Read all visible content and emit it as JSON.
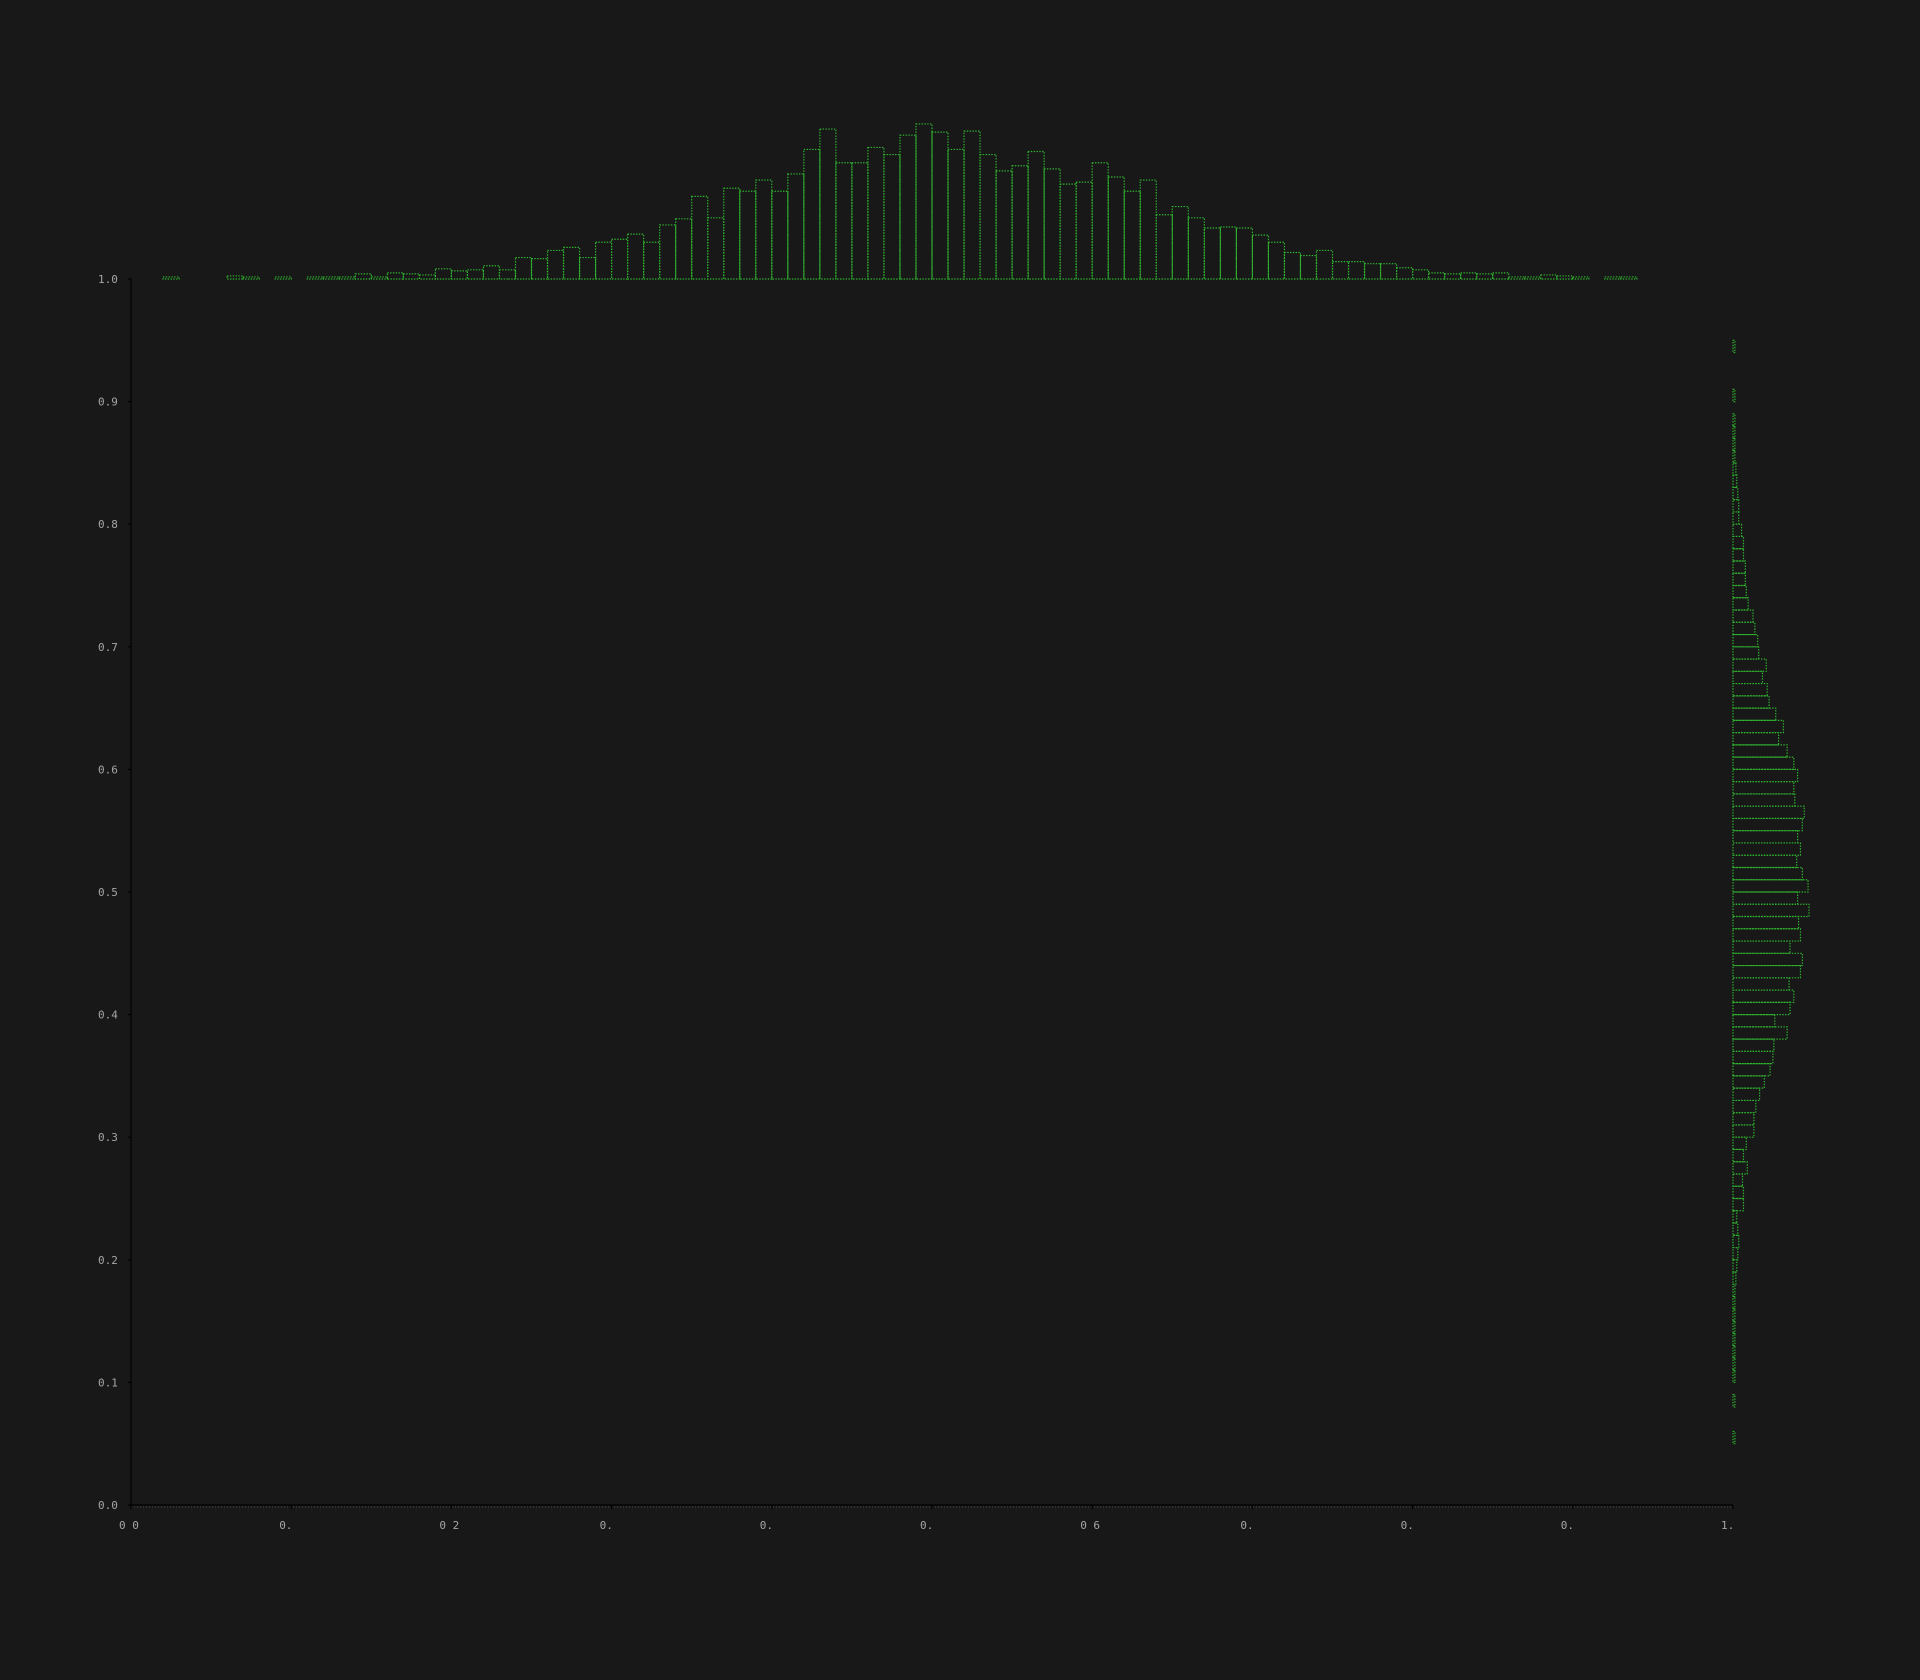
{
  "chart_data": {
    "type": "scatter-with-marginal-histograms",
    "xlim": [
      0.0,
      1.0
    ],
    "ylim": [
      0.0,
      1.0
    ],
    "colors": {
      "background": "#181818",
      "bars": "#2fb52f",
      "ticks": "#a6a6a6",
      "axis": "#000000"
    },
    "x_ticks": [
      {
        "value": 0.0,
        "label": "0 0"
      },
      {
        "value": 0.1,
        "label": "0."
      },
      {
        "value": 0.2,
        "label": "0 2"
      },
      {
        "value": 0.3,
        "label": "0."
      },
      {
        "value": 0.4,
        "label": "0."
      },
      {
        "value": 0.5,
        "label": "0."
      },
      {
        "value": 0.6,
        "label": "0 6"
      },
      {
        "value": 0.7,
        "label": "0."
      },
      {
        "value": 0.8,
        "label": "0."
      },
      {
        "value": 0.9,
        "label": "0."
      },
      {
        "value": 1.0,
        "label": "1."
      }
    ],
    "y_ticks": [
      {
        "value": 0.0,
        "label": "0.0"
      },
      {
        "value": 0.1,
        "label": "0.1"
      },
      {
        "value": 0.2,
        "label": "0.2"
      },
      {
        "value": 0.3,
        "label": "0.3"
      },
      {
        "value": 0.4,
        "label": "0.4"
      },
      {
        "value": 0.5,
        "label": "0.5"
      },
      {
        "value": 0.6,
        "label": "0.6"
      },
      {
        "value": 0.7,
        "label": "0.7"
      },
      {
        "value": 0.8,
        "label": "0.8"
      },
      {
        "value": 0.9,
        "label": "0.9"
      },
      {
        "value": 1.0,
        "label": "1.0"
      }
    ],
    "top_histogram": {
      "bin_width": 0.01,
      "bins": [
        [
          0.02,
          0.2
        ],
        [
          0.06,
          0.3
        ],
        [
          0.07,
          0.2
        ],
        [
          0.09,
          0.2
        ],
        [
          0.11,
          0.2
        ],
        [
          0.12,
          0.2
        ],
        [
          0.13,
          0.2
        ],
        [
          0.14,
          0.5
        ],
        [
          0.15,
          0.2
        ],
        [
          0.16,
          0.6
        ],
        [
          0.17,
          0.5
        ],
        [
          0.18,
          0.4
        ],
        [
          0.19,
          1
        ],
        [
          0.2,
          0.8
        ],
        [
          0.21,
          0.9
        ],
        [
          0.22,
          1.3
        ],
        [
          0.23,
          0.9
        ],
        [
          0.24,
          2.1
        ],
        [
          0.25,
          2
        ],
        [
          0.26,
          2.8
        ],
        [
          0.27,
          3.1
        ],
        [
          0.28,
          2.1
        ],
        [
          0.29,
          3.6
        ],
        [
          0.3,
          3.9
        ],
        [
          0.31,
          4.4
        ],
        [
          0.32,
          3.6
        ],
        [
          0.33,
          5.3
        ],
        [
          0.34,
          5.9
        ],
        [
          0.35,
          8.1
        ],
        [
          0.36,
          6
        ],
        [
          0.37,
          8.9
        ],
        [
          0.38,
          8.6
        ],
        [
          0.39,
          9.7
        ],
        [
          0.4,
          8.6
        ],
        [
          0.41,
          10.3
        ],
        [
          0.42,
          12.7
        ],
        [
          0.43,
          14.7
        ],
        [
          0.44,
          11.4
        ],
        [
          0.45,
          11.4
        ],
        [
          0.46,
          12.9
        ],
        [
          0.47,
          12.2
        ],
        [
          0.48,
          14.1
        ],
        [
          0.49,
          15.2
        ],
        [
          0.5,
          14.4
        ],
        [
          0.51,
          12.7
        ],
        [
          0.52,
          14.5
        ],
        [
          0.53,
          12.2
        ],
        [
          0.54,
          10.6
        ],
        [
          0.55,
          11.1
        ],
        [
          0.56,
          12.5
        ],
        [
          0.57,
          10.8
        ],
        [
          0.58,
          9.3
        ],
        [
          0.59,
          9.5
        ],
        [
          0.6,
          11.4
        ],
        [
          0.61,
          10
        ],
        [
          0.62,
          8.6
        ],
        [
          0.63,
          9.7
        ],
        [
          0.64,
          6.3
        ],
        [
          0.65,
          7.1
        ],
        [
          0.66,
          6
        ],
        [
          0.67,
          5
        ],
        [
          0.68,
          5.1
        ],
        [
          0.69,
          5
        ],
        [
          0.7,
          4.3
        ],
        [
          0.71,
          3.6
        ],
        [
          0.72,
          2.6
        ],
        [
          0.73,
          2.3
        ],
        [
          0.74,
          2.8
        ],
        [
          0.75,
          1.7
        ],
        [
          0.76,
          1.7
        ],
        [
          0.77,
          1.5
        ],
        [
          0.78,
          1.5
        ],
        [
          0.79,
          1.1
        ],
        [
          0.8,
          0.9
        ],
        [
          0.81,
          0.6
        ],
        [
          0.82,
          0.5
        ],
        [
          0.83,
          0.6
        ],
        [
          0.84,
          0.5
        ],
        [
          0.85,
          0.6
        ],
        [
          0.86,
          0.2
        ],
        [
          0.87,
          0.2
        ],
        [
          0.88,
          0.4
        ],
        [
          0.89,
          0.3
        ],
        [
          0.9,
          0.2
        ],
        [
          0.92,
          0.2
        ],
        [
          0.93,
          0.2
        ]
      ]
    },
    "right_histogram": {
      "bin_width": 0.01,
      "bins": [
        [
          0.05,
          0.2
        ],
        [
          0.08,
          0.2
        ],
        [
          0.1,
          0.2
        ],
        [
          0.11,
          0.2
        ],
        [
          0.12,
          0.2
        ],
        [
          0.13,
          0.2
        ],
        [
          0.14,
          0.2
        ],
        [
          0.15,
          0.2
        ],
        [
          0.16,
          0.2
        ],
        [
          0.17,
          0.2
        ],
        [
          0.18,
          0.3
        ],
        [
          0.19,
          0.4
        ],
        [
          0.2,
          0.5
        ],
        [
          0.21,
          0.6
        ],
        [
          0.22,
          0.5
        ],
        [
          0.23,
          0.4
        ],
        [
          0.24,
          1.1
        ],
        [
          0.25,
          1.1
        ],
        [
          0.26,
          1
        ],
        [
          0.27,
          1.5
        ],
        [
          0.28,
          1.1
        ],
        [
          0.29,
          1.4
        ],
        [
          0.3,
          2.2
        ],
        [
          0.31,
          2.2
        ],
        [
          0.32,
          2.4
        ],
        [
          0.33,
          2.8
        ],
        [
          0.34,
          3.3
        ],
        [
          0.35,
          3.9
        ],
        [
          0.36,
          4.2
        ],
        [
          0.37,
          4.3
        ],
        [
          0.38,
          5.7
        ],
        [
          0.39,
          4.4
        ],
        [
          0.4,
          6
        ],
        [
          0.41,
          6.4
        ],
        [
          0.42,
          5.9
        ],
        [
          0.43,
          7.1
        ],
        [
          0.44,
          7.3
        ],
        [
          0.45,
          6
        ],
        [
          0.46,
          7.1
        ],
        [
          0.47,
          6.9
        ],
        [
          0.48,
          8
        ],
        [
          0.49,
          6.8
        ],
        [
          0.5,
          7.9
        ],
        [
          0.51,
          7.3
        ],
        [
          0.52,
          6.7
        ],
        [
          0.53,
          7.1
        ],
        [
          0.54,
          6.8
        ],
        [
          0.55,
          7.3
        ],
        [
          0.56,
          7.5
        ],
        [
          0.57,
          6.5
        ],
        [
          0.58,
          6.4
        ],
        [
          0.59,
          6.8
        ],
        [
          0.6,
          6.4
        ],
        [
          0.61,
          5.7
        ],
        [
          0.62,
          4.8
        ],
        [
          0.63,
          5.3
        ],
        [
          0.64,
          4.5
        ],
        [
          0.65,
          3.8
        ],
        [
          0.66,
          3.6
        ],
        [
          0.67,
          3.1
        ],
        [
          0.68,
          3.5
        ],
        [
          0.69,
          2.7
        ],
        [
          0.7,
          2.6
        ],
        [
          0.71,
          2.3
        ],
        [
          0.72,
          2.1
        ],
        [
          0.73,
          1.6
        ],
        [
          0.74,
          1.4
        ],
        [
          0.75,
          1.3
        ],
        [
          0.76,
          1.3
        ],
        [
          0.77,
          1.1
        ],
        [
          0.78,
          1.1
        ],
        [
          0.79,
          0.9
        ],
        [
          0.8,
          0.6
        ],
        [
          0.81,
          0.6
        ],
        [
          0.82,
          0.5
        ],
        [
          0.83,
          0.4
        ],
        [
          0.84,
          0.3
        ],
        [
          0.85,
          0.2
        ],
        [
          0.86,
          0.2
        ],
        [
          0.87,
          0.2
        ],
        [
          0.88,
          0.2
        ],
        [
          0.9,
          0.2
        ],
        [
          0.94,
          0.2
        ]
      ]
    }
  }
}
